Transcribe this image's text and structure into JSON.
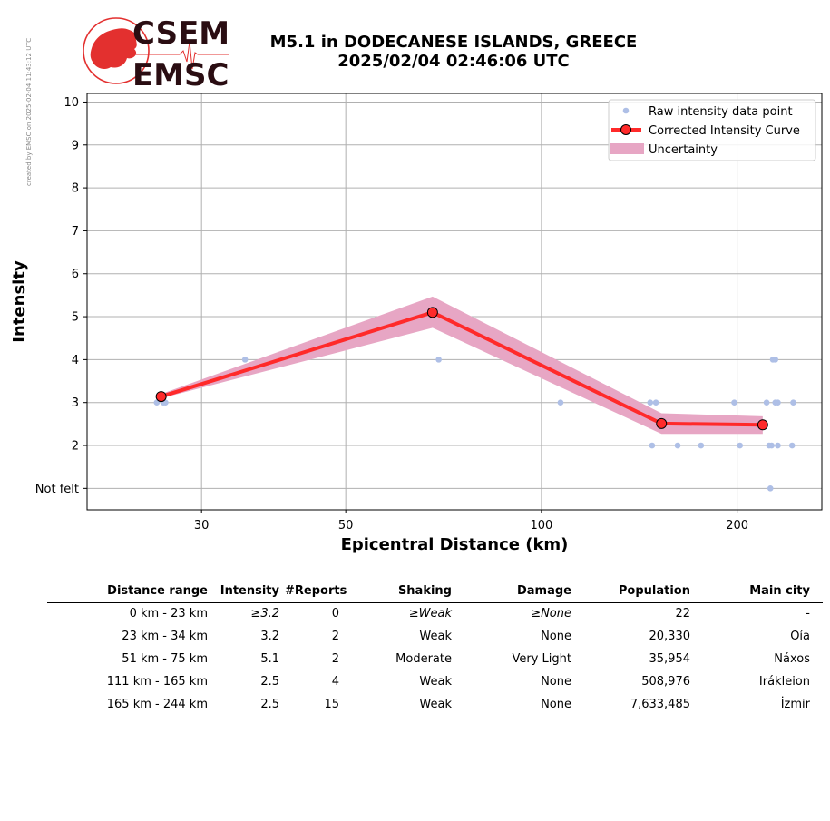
{
  "watermark": "created by EMSC on 2025-02-04 11:43:12 UTC",
  "logo": {
    "line1": "CSEM",
    "line2": "EMSC"
  },
  "title": {
    "line1": "M5.1 in DODECANESE ISLANDS, GREECE",
    "line2": "2025/02/04 02:46:06 UTC"
  },
  "colors": {
    "curve": "#ff2a2a",
    "uncertainty": "#e7a6c4",
    "raw": "#aebfe6",
    "logo_red": "#e3302f",
    "logo_dark": "#2a0d12"
  },
  "chart_data": {
    "type": "line",
    "xlabel": "Epicentral Distance (km)",
    "ylabel": "Intensity",
    "xscale": "log",
    "xlim": [
      20,
      270
    ],
    "ylim": [
      0.5,
      10.2
    ],
    "xticks": [
      30,
      50,
      100,
      200
    ],
    "yticks": [
      {
        "v": 1,
        "label": "Not felt"
      },
      {
        "v": 2,
        "label": "2"
      },
      {
        "v": 3,
        "label": "3"
      },
      {
        "v": 4,
        "label": "4"
      },
      {
        "v": 5,
        "label": "5"
      },
      {
        "v": 6,
        "label": "6"
      },
      {
        "v": 7,
        "label": "7"
      },
      {
        "v": 8,
        "label": "8"
      },
      {
        "v": 9,
        "label": "9"
      },
      {
        "v": 10,
        "label": "10"
      }
    ],
    "grid": true,
    "legend": [
      "Raw intensity data point",
      "Corrected Intensity Curve",
      "Uncertainty"
    ],
    "legend_position": "top-right",
    "raw_points": [
      {
        "x": 25.6,
        "y": 3
      },
      {
        "x": 26.2,
        "y": 3
      },
      {
        "x": 26.4,
        "y": 3
      },
      {
        "x": 35.0,
        "y": 4
      },
      {
        "x": 69.5,
        "y": 4
      },
      {
        "x": 107,
        "y": 3
      },
      {
        "x": 147,
        "y": 3
      },
      {
        "x": 150,
        "y": 3
      },
      {
        "x": 148,
        "y": 2
      },
      {
        "x": 162,
        "y": 2
      },
      {
        "x": 176,
        "y": 2
      },
      {
        "x": 198,
        "y": 3
      },
      {
        "x": 202,
        "y": 2
      },
      {
        "x": 222,
        "y": 3
      },
      {
        "x": 224,
        "y": 2
      },
      {
        "x": 226,
        "y": 2
      },
      {
        "x": 227,
        "y": 4
      },
      {
        "x": 229,
        "y": 4
      },
      {
        "x": 229,
        "y": 3
      },
      {
        "x": 231,
        "y": 3
      },
      {
        "x": 231,
        "y": 2
      },
      {
        "x": 244,
        "y": 3
      },
      {
        "x": 243,
        "y": 2
      },
      {
        "x": 225,
        "y": 1
      }
    ],
    "curve": [
      {
        "x": 26.0,
        "y": 3.14
      },
      {
        "x": 68.0,
        "y": 5.1
      },
      {
        "x": 153,
        "y": 2.51
      },
      {
        "x": 219,
        "y": 2.48
      }
    ],
    "uncertainty_upper": [
      3.2,
      5.47,
      2.75,
      2.68
    ],
    "uncertainty_lower": [
      3.1,
      4.74,
      2.27,
      2.27
    ]
  },
  "table": {
    "headers": [
      "Distance range",
      "Intensity",
      "#Reports",
      "Shaking",
      "Damage",
      "Population",
      "Main city"
    ],
    "rows": [
      [
        "0 km -   23 km",
        "≥3.2",
        "0",
        "≥Weak",
        "≥None",
        "22",
        "-"
      ],
      [
        "23 km -   34 km",
        "3.2",
        "2",
        "Weak",
        "None",
        "20,330",
        "Oía"
      ],
      [
        "51 km -   75 km",
        "5.1",
        "2",
        "Moderate",
        "Very Light",
        "35,954",
        "Náxos"
      ],
      [
        "111 km -  165 km",
        "2.5",
        "4",
        "Weak",
        "None",
        "508,976",
        "Irákleion"
      ],
      [
        "165 km -  244 km",
        "2.5",
        "15",
        "Weak",
        "None",
        "7,633,485",
        "İzmir"
      ]
    ]
  }
}
